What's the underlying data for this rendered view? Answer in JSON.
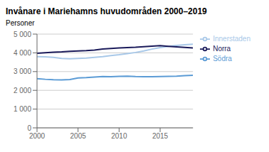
{
  "chart_data": {
    "type": "line",
    "title": "Invånare i Mariehamns huvudområden 2000–2019",
    "ylabel": "Personer",
    "x": [
      2000,
      2001,
      2002,
      2003,
      2004,
      2005,
      2006,
      2007,
      2008,
      2009,
      2010,
      2011,
      2012,
      2013,
      2014,
      2015,
      2016,
      2017,
      2018,
      2019
    ],
    "series": [
      {
        "name": "Innerstaden",
        "color": "#a8c8e8",
        "values": [
          3800,
          3790,
          3760,
          3700,
          3680,
          3700,
          3720,
          3760,
          3800,
          3850,
          3900,
          3960,
          4020,
          4100,
          4200,
          4280,
          4350,
          4390,
          4430,
          4460
        ]
      },
      {
        "name": "Norra",
        "color": "#1a1a5a",
        "values": [
          3980,
          4010,
          4030,
          4050,
          4080,
          4100,
          4120,
          4150,
          4200,
          4230,
          4260,
          4280,
          4300,
          4330,
          4360,
          4380,
          4350,
          4320,
          4290,
          4260
        ]
      },
      {
        "name": "Södra",
        "color": "#5b9bd5",
        "values": [
          2620,
          2590,
          2570,
          2560,
          2580,
          2660,
          2680,
          2710,
          2740,
          2730,
          2750,
          2760,
          2740,
          2730,
          2730,
          2740,
          2750,
          2760,
          2780,
          2800
        ]
      }
    ],
    "xlim": [
      2000,
      2019
    ],
    "xticks": [
      2000,
      2005,
      2010,
      2015
    ],
    "ylim": [
      0,
      5000
    ],
    "yticks": [
      0,
      {
        "value": 1000,
        "label": "1 000"
      },
      {
        "value": 2000,
        "label": "2 000"
      },
      {
        "value": 3000,
        "label": "3 000"
      },
      {
        "value": 4000,
        "label": "4 000"
      },
      {
        "value": 5000,
        "label": "5 000"
      }
    ],
    "grid": "y",
    "legend": "right"
  }
}
